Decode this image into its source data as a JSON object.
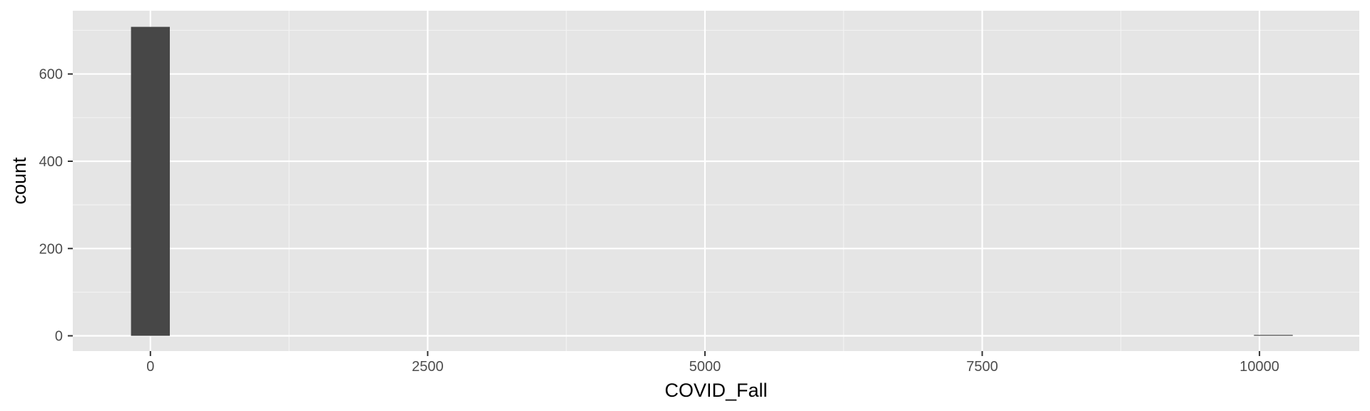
{
  "chart_data": {
    "type": "bar",
    "subtype": "histogram",
    "title": "",
    "xlabel": "COVID_Fall",
    "ylabel": "count",
    "x_ticks": [
      0,
      2500,
      5000,
      7500,
      10000
    ],
    "y_ticks": [
      0,
      200,
      400,
      600
    ],
    "xlim": [
      -700,
      10900
    ],
    "ylim": [
      -35,
      745
    ],
    "bins": [
      {
        "x_start": -175,
        "x_end": 175,
        "count": 708
      },
      {
        "x_start": 9950,
        "x_end": 10300,
        "count": 1
      }
    ],
    "grid": true,
    "legend": "none"
  },
  "colors": {
    "panel_background": "#e5e5e5",
    "grid_major": "#ffffff",
    "grid_minor": "#f2f2f2",
    "bar_fill": "#474747",
    "tick_mark": "#333333",
    "tick_text": "#4d4d4d",
    "axis_title": "#000000"
  }
}
